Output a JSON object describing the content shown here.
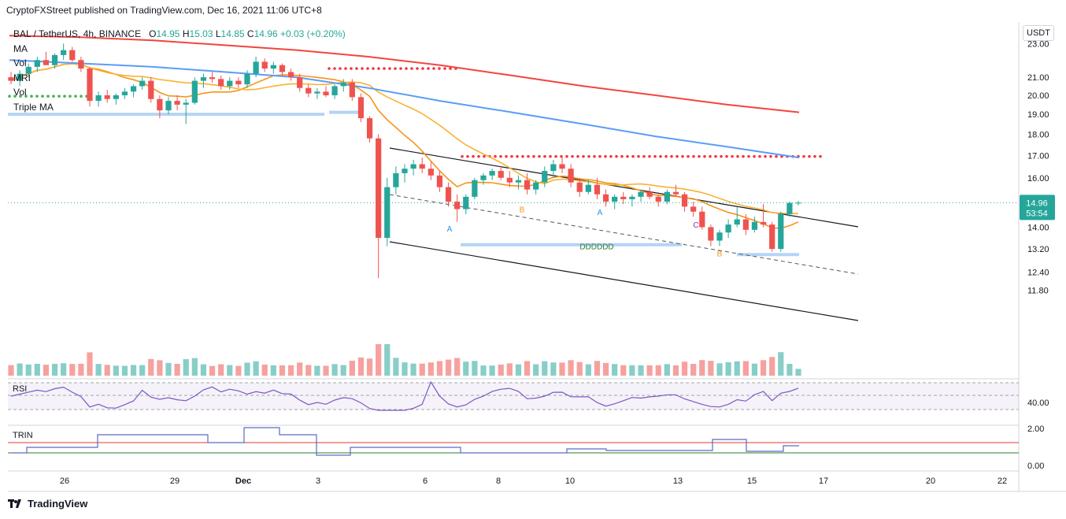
{
  "header": {
    "text": "CryptoFXStreet published on TradingView.com, Dec 16, 2021 11:06 UTC+8"
  },
  "legend": {
    "symbol": "BAL / TetherUS, 4h, BINANCE",
    "o_label": "O",
    "o": "14.95",
    "h_label": "H",
    "h": "15.03",
    "l_label": "L",
    "l": "14.85",
    "c_label": "C",
    "c": "14.96",
    "change": "+0.03 (+0.20%)",
    "indicators": [
      "MA",
      "Vol",
      "MRI",
      "Vol",
      "Triple MA"
    ]
  },
  "currency": "USDT",
  "footer": {
    "brand": "TradingView"
  },
  "colors": {
    "up": "#26a69a",
    "down": "#ef5350",
    "ma_orange": "#f7931a",
    "ma_yellow": "#f9b233",
    "ma_blue": "#5b9cf6",
    "ma_red": "#f2453d",
    "rsi": "#7e57c2"
  },
  "chart_data": {
    "type": "candlestick",
    "symbol": "BAL / TetherUS",
    "interval": "4h",
    "price_axis": {
      "ticks": [
        "23.00",
        "21.00",
        "20.00",
        "19.00",
        "18.00",
        "17.00",
        "16.00",
        "15.00",
        "14.00",
        "13.20",
        "12.40",
        "11.80"
      ],
      "scale": "log"
    },
    "x_labels": [
      "26",
      "29",
      "Dec",
      "3",
      "6",
      "8",
      "10",
      "13",
      "15",
      "17",
      "20",
      "22"
    ],
    "last_price": "14.96",
    "countdown": "53:54",
    "candles": [
      [
        21.0,
        21.3,
        20.6,
        20.8
      ],
      [
        20.8,
        21.4,
        20.5,
        21.2
      ],
      [
        21.2,
        21.8,
        21.0,
        21.6
      ],
      [
        21.6,
        22.2,
        21.3,
        22.0
      ],
      [
        22.0,
        22.5,
        21.7,
        21.7
      ],
      [
        21.7,
        22.4,
        21.5,
        22.3
      ],
      [
        22.3,
        23.0,
        22.0,
        22.6
      ],
      [
        22.6,
        22.8,
        21.9,
        22.0
      ],
      [
        22.0,
        22.2,
        21.3,
        21.5
      ],
      [
        21.5,
        21.6,
        19.4,
        19.7
      ],
      [
        19.7,
        20.2,
        19.4,
        20.0
      ],
      [
        20.0,
        20.3,
        19.6,
        19.8
      ],
      [
        19.8,
        20.1,
        19.5,
        20.0
      ],
      [
        20.0,
        20.4,
        19.8,
        20.2
      ],
      [
        20.2,
        20.6,
        19.9,
        20.5
      ],
      [
        20.5,
        21.0,
        20.3,
        20.8
      ],
      [
        20.8,
        21.0,
        19.6,
        19.8
      ],
      [
        19.8,
        20.0,
        18.8,
        19.2
      ],
      [
        19.2,
        19.9,
        19.0,
        19.7
      ],
      [
        19.7,
        20.0,
        19.2,
        19.5
      ],
      [
        19.5,
        19.8,
        18.5,
        19.6
      ],
      [
        19.6,
        21.0,
        19.5,
        20.8
      ],
      [
        20.8,
        21.2,
        20.4,
        21.0
      ],
      [
        21.0,
        21.3,
        20.7,
        20.9
      ],
      [
        20.9,
        21.1,
        20.3,
        20.5
      ],
      [
        20.5,
        21.0,
        20.3,
        20.8
      ],
      [
        20.8,
        21.0,
        20.4,
        20.6
      ],
      [
        20.6,
        21.4,
        20.4,
        21.2
      ],
      [
        21.2,
        22.2,
        21.0,
        21.9
      ],
      [
        21.9,
        22.1,
        21.3,
        21.5
      ],
      [
        21.5,
        21.9,
        21.2,
        21.7
      ],
      [
        21.7,
        21.8,
        21.1,
        21.3
      ],
      [
        21.3,
        21.5,
        20.8,
        21.0
      ],
      [
        21.0,
        21.2,
        20.2,
        20.4
      ],
      [
        20.4,
        20.6,
        19.9,
        20.1
      ],
      [
        20.1,
        20.4,
        19.8,
        20.2
      ],
      [
        20.2,
        20.5,
        19.9,
        20.0
      ],
      [
        20.0,
        20.6,
        19.8,
        20.5
      ],
      [
        20.5,
        20.9,
        20.2,
        20.7
      ],
      [
        20.7,
        20.9,
        19.7,
        19.9
      ],
      [
        19.9,
        20.1,
        18.6,
        18.8
      ],
      [
        18.8,
        18.9,
        17.6,
        17.8
      ],
      [
        17.8,
        18.0,
        12.2,
        13.6
      ],
      [
        13.6,
        16.0,
        13.3,
        15.6
      ],
      [
        15.6,
        16.5,
        15.3,
        16.2
      ],
      [
        16.2,
        16.6,
        15.8,
        16.4
      ],
      [
        16.4,
        16.8,
        16.1,
        16.6
      ],
      [
        16.6,
        16.9,
        16.2,
        16.4
      ],
      [
        16.4,
        16.7,
        15.9,
        16.1
      ],
      [
        16.1,
        16.3,
        15.4,
        15.6
      ],
      [
        15.6,
        15.8,
        14.8,
        15.0
      ],
      [
        15.0,
        15.3,
        14.2,
        14.7
      ],
      [
        14.7,
        15.3,
        14.5,
        15.2
      ],
      [
        15.2,
        16.0,
        15.1,
        15.9
      ],
      [
        15.9,
        16.2,
        15.7,
        16.1
      ],
      [
        16.1,
        16.4,
        15.9,
        16.3
      ],
      [
        16.3,
        16.5,
        15.9,
        16.0
      ],
      [
        16.0,
        16.3,
        15.6,
        15.8
      ],
      [
        15.8,
        16.1,
        15.5,
        15.9
      ],
      [
        15.9,
        16.2,
        15.3,
        15.5
      ],
      [
        15.5,
        15.9,
        15.3,
        15.8
      ],
      [
        15.8,
        16.5,
        15.6,
        16.3
      ],
      [
        16.3,
        16.8,
        16.0,
        16.6
      ],
      [
        16.6,
        17.0,
        16.2,
        16.4
      ],
      [
        16.4,
        16.6,
        15.6,
        15.8
      ],
      [
        15.8,
        16.0,
        15.2,
        15.4
      ],
      [
        15.4,
        15.9,
        15.3,
        15.7
      ],
      [
        15.7,
        16.0,
        15.1,
        15.3
      ],
      [
        15.3,
        15.5,
        14.8,
        15.0
      ],
      [
        15.0,
        15.3,
        14.7,
        15.2
      ],
      [
        15.2,
        15.4,
        14.9,
        15.1
      ],
      [
        15.1,
        15.3,
        14.8,
        15.2
      ],
      [
        15.2,
        15.5,
        15.0,
        15.4
      ],
      [
        15.4,
        15.6,
        15.1,
        15.2
      ],
      [
        15.2,
        15.3,
        14.8,
        15.0
      ],
      [
        15.0,
        15.5,
        14.9,
        15.4
      ],
      [
        15.4,
        15.7,
        15.2,
        15.3
      ],
      [
        15.3,
        15.4,
        14.6,
        14.8
      ],
      [
        14.8,
        15.0,
        14.4,
        14.6
      ],
      [
        14.6,
        14.8,
        13.9,
        14.0
      ],
      [
        14.0,
        14.1,
        13.3,
        13.5
      ],
      [
        13.5,
        13.9,
        13.3,
        13.8
      ],
      [
        13.8,
        14.3,
        13.6,
        14.1
      ],
      [
        14.1,
        14.8,
        14.0,
        14.3
      ],
      [
        14.3,
        14.5,
        13.7,
        13.9
      ],
      [
        13.9,
        14.4,
        13.8,
        14.2
      ],
      [
        14.2,
        14.9,
        14.0,
        14.1
      ],
      [
        14.1,
        14.2,
        13.1,
        13.2
      ],
      [
        13.2,
        14.6,
        13.1,
        14.5
      ],
      [
        14.5,
        15.0,
        14.4,
        14.95
      ],
      [
        14.95,
        15.03,
        14.85,
        14.96
      ]
    ],
    "annotations": [
      {
        "text": "DDDDDD",
        "price": 13.3
      },
      {
        "text": "A",
        "price": 13.95
      },
      {
        "text": "B",
        "price": 14.7
      },
      {
        "text": "A",
        "price": 14.6
      },
      {
        "text": "C",
        "price": 14.1
      },
      {
        "text": "B",
        "price": 13.05
      }
    ],
    "indicators": {
      "rsi": {
        "label": "RSI",
        "ticks": [
          "40.00"
        ]
      },
      "trin": {
        "label": "TRIN",
        "ticks": [
          "2.00",
          "0.00"
        ]
      }
    }
  }
}
